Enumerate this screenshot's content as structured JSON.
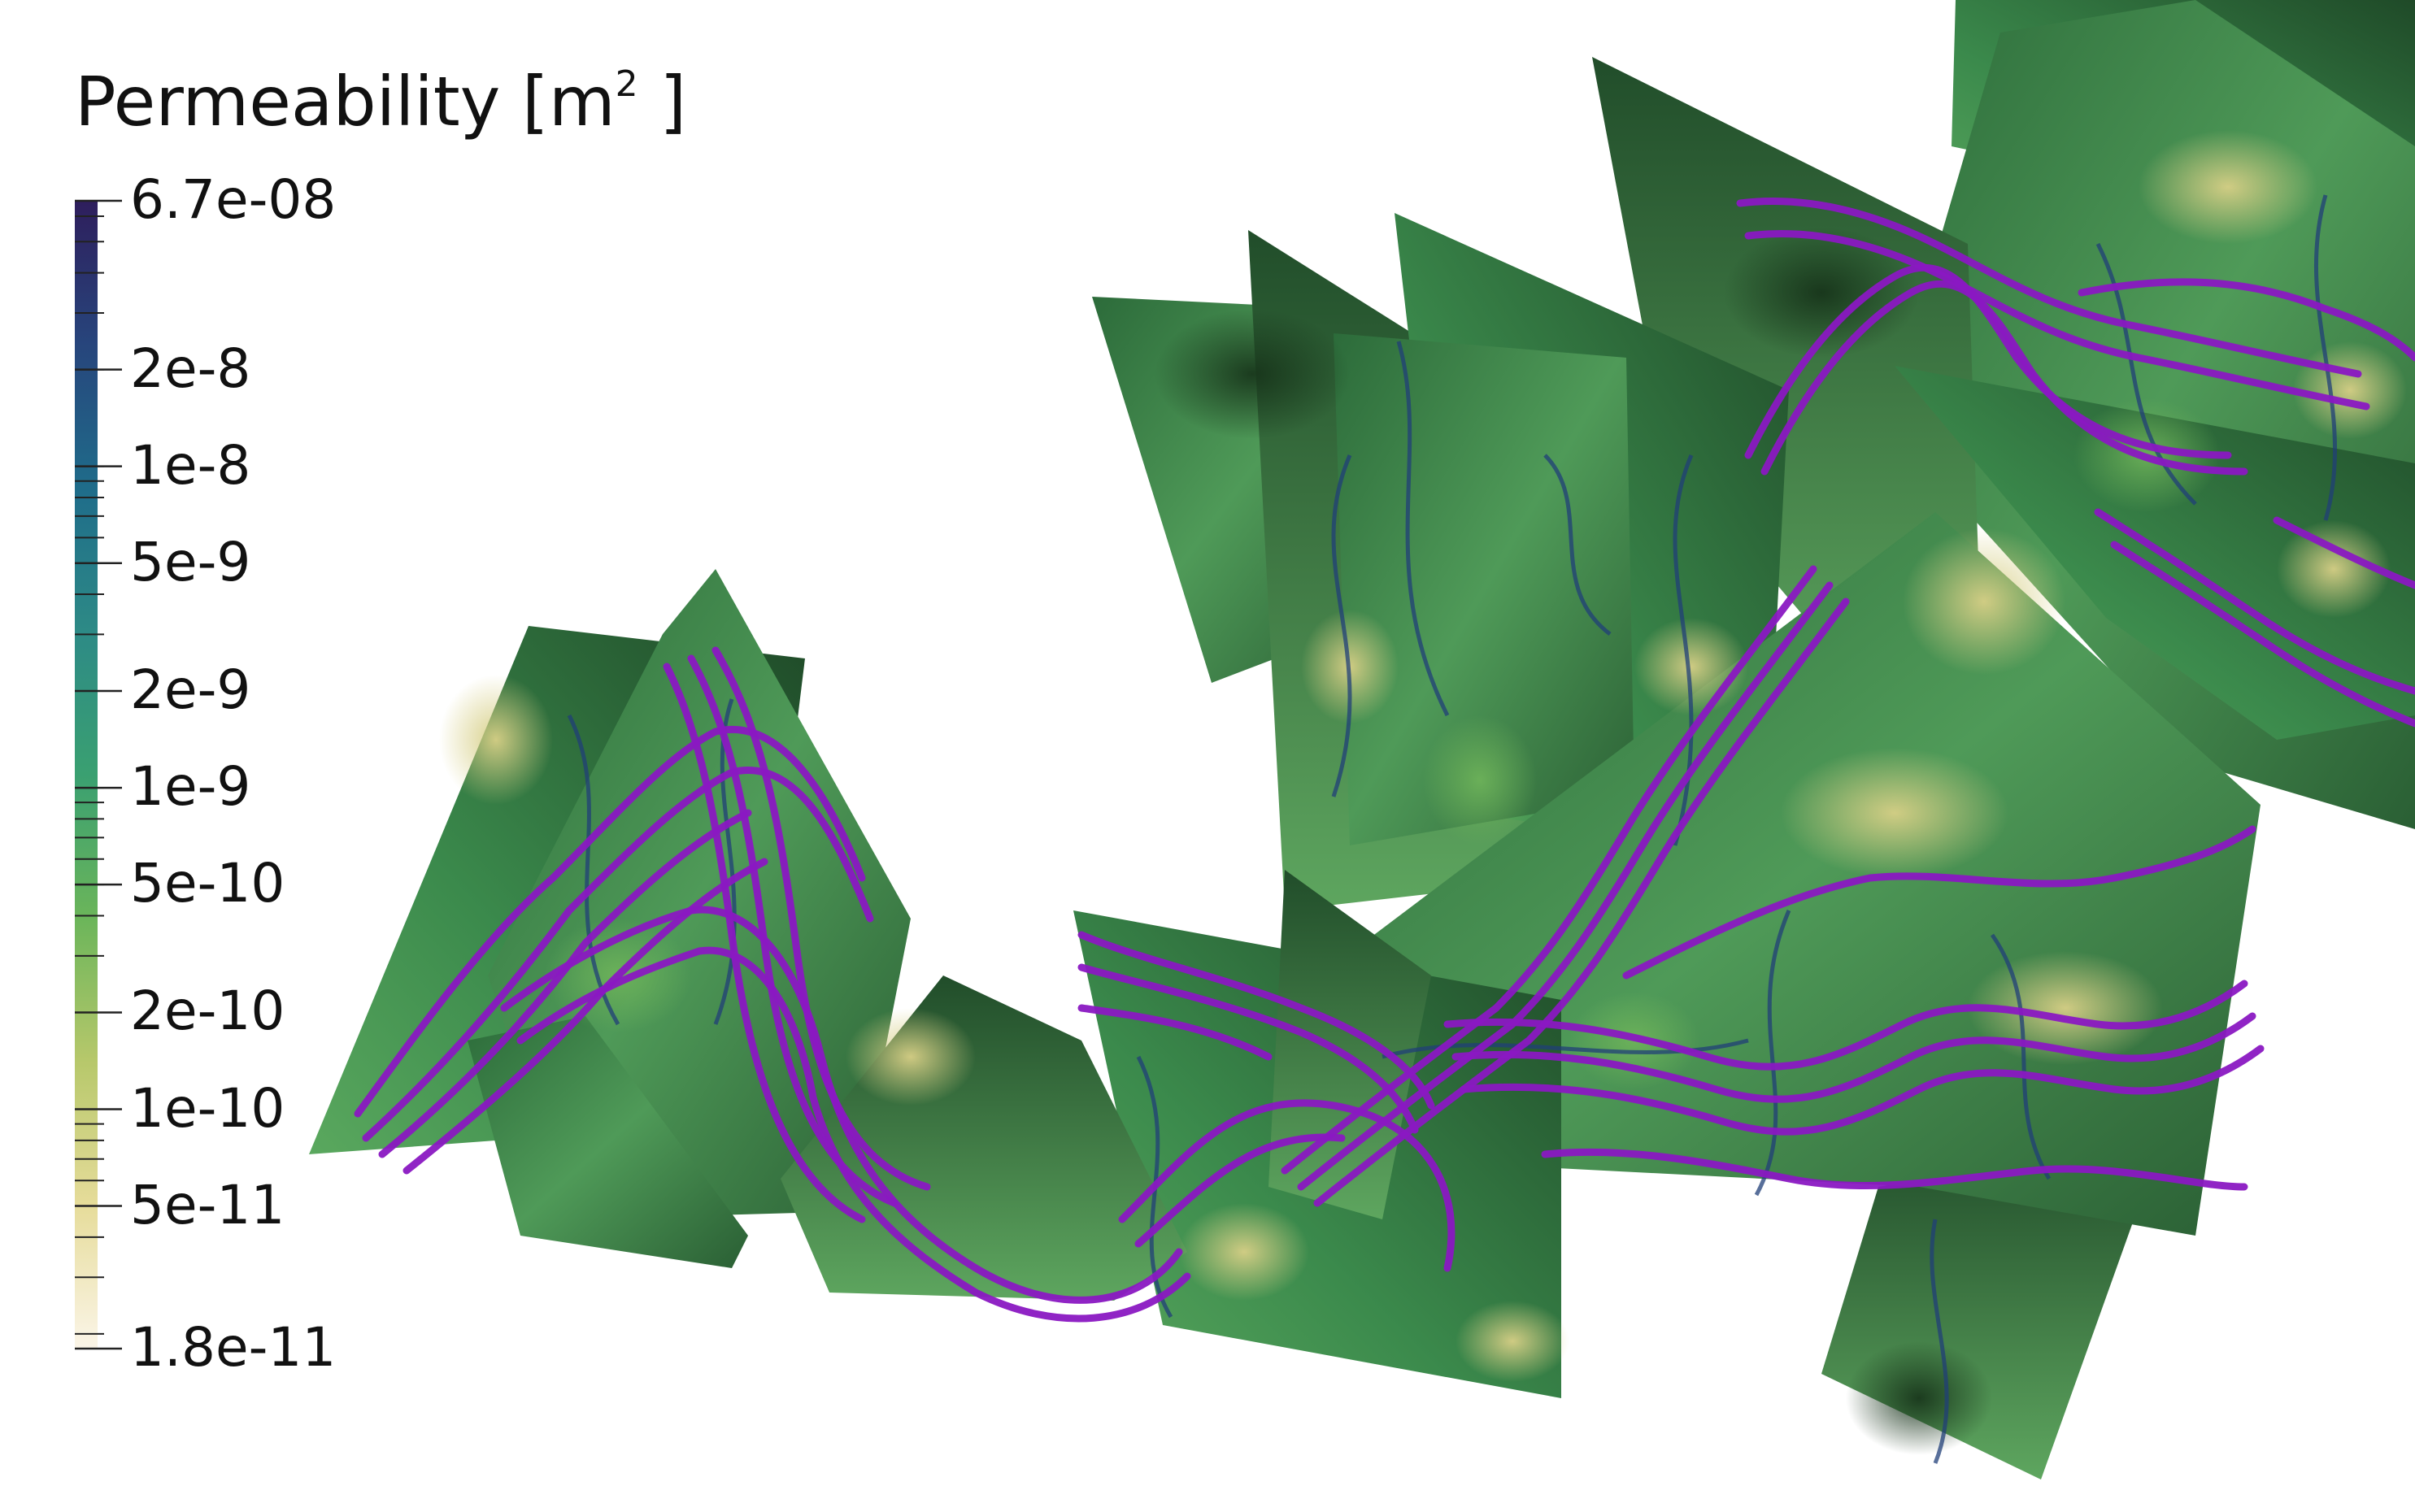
{
  "legend": {
    "title_text": "Permeability [m",
    "title_sup": "2",
    "title_close": " ]",
    "scale": "log",
    "colors": [
      "#2e1e5c",
      "#27457c",
      "#1f6c8a",
      "#2d8a86",
      "#3aa071",
      "#6bb55a",
      "#b7c86b",
      "#e6dc9a",
      "#fbf5e8"
    ],
    "labels": [
      {
        "text": "6.7e-08",
        "value": 6.7e-08
      },
      {
        "text": "2e-8",
        "value": 2e-08
      },
      {
        "text": "1e-8",
        "value": 1e-08
      },
      {
        "text": "5e-9",
        "value": 5e-09
      },
      {
        "text": "2e-9",
        "value": 2e-09
      },
      {
        "text": "1e-9",
        "value": 1e-09
      },
      {
        "text": "5e-10",
        "value": 5e-10
      },
      {
        "text": "2e-10",
        "value": 2e-10
      },
      {
        "text": "1e-10",
        "value": 1e-10
      },
      {
        "text": "5e-11",
        "value": 5e-11
      },
      {
        "text": "1.8e-11",
        "value": 1.8e-11
      }
    ],
    "min": 1.8e-11,
    "max": 6.7e-08
  },
  "render": {
    "fracture_dark": "#1b3d22",
    "fracture_mid": "#3f8a52",
    "fracture_light": "#c9c47a",
    "vein_color": "#1f3f7a",
    "streamline_color": "#8a18c2"
  }
}
